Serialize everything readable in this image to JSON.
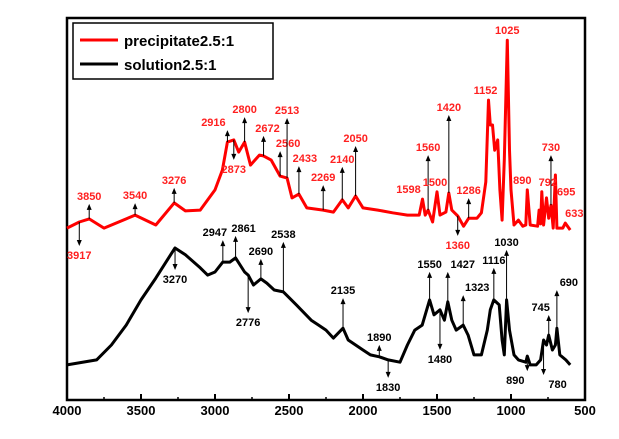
{
  "chart_data": {
    "type": "line",
    "title": "",
    "xlabel": "",
    "ylabel": "",
    "xlim": [
      4000,
      500
    ],
    "ylim": [
      0,
      100
    ],
    "x_reversed": true,
    "y_ticks_shown": false,
    "grid": false,
    "legend_position": "top-left",
    "x_ticks": [
      4000,
      3500,
      3000,
      2500,
      2000,
      1500,
      1000,
      500
    ],
    "x_tick_labels": [
      "4000",
      "3500",
      "3000",
      "2500",
      "2000",
      "1500",
      "1000",
      "500"
    ],
    "series": [
      {
        "name": "precipitate2.5:1",
        "color": "#ff0000",
        "x": [
          4000,
          3917,
          3850,
          3750,
          3540,
          3400,
          3276,
          3200,
          3100,
          3000,
          2950,
          2916,
          2873,
          2840,
          2800,
          2760,
          2700,
          2672,
          2620,
          2560,
          2513,
          2480,
          2433,
          2380,
          2269,
          2200,
          2140,
          2100,
          2050,
          2000,
          1900,
          1800,
          1700,
          1620,
          1598,
          1580,
          1560,
          1530,
          1500,
          1480,
          1440,
          1420,
          1400,
          1360,
          1320,
          1286,
          1230,
          1200,
          1170,
          1152,
          1140,
          1125,
          1110,
          1090,
          1075,
          1060,
          1045,
          1025,
          1010,
          1000,
          980,
          950,
          920,
          900,
          890,
          870,
          820,
          810,
          800,
          792,
          780,
          760,
          745,
          730,
          715,
          700,
          690,
          650,
          633,
          600
        ],
        "y": [
          45.0,
          46.6,
          47.4,
          45.0,
          48.4,
          45.8,
          51.6,
          49.5,
          49.7,
          55.0,
          60.2,
          67.5,
          68.1,
          64.9,
          67.5,
          61.5,
          64.1,
          63.9,
          62.8,
          58.6,
          58.1,
          52.9,
          53.9,
          50.3,
          49.7,
          49.2,
          52.4,
          50.3,
          53.4,
          50.3,
          49.7,
          49.0,
          48.4,
          48.4,
          52.6,
          48.4,
          49.7,
          46.6,
          54.5,
          48.4,
          49.2,
          54.2,
          49.7,
          48.2,
          45.5,
          47.6,
          47.6,
          49.0,
          57.1,
          78.5,
          72.0,
          72.0,
          65.4,
          68.1,
          55.0,
          47.1,
          62.8,
          94.2,
          65.4,
          55.0,
          45.8,
          47.1,
          45.5,
          45.8,
          55.0,
          45.8,
          45.5,
          49.7,
          46.1,
          54.5,
          45.8,
          52.9,
          47.6,
          51.0,
          45.0,
          58.9,
          45.0,
          45.0,
          46.3,
          44.5
        ],
        "annotations": [
          {
            "label": "3917",
            "at": 3917,
            "arrow": "down"
          },
          {
            "label": "3850",
            "at": 3850,
            "arrow": "up"
          },
          {
            "label": "3540",
            "at": 3540,
            "arrow": "up"
          },
          {
            "label": "3276",
            "at": 3276,
            "arrow": "up"
          },
          {
            "label": "2916",
            "at": 2916,
            "arrow": "up"
          },
          {
            "label": "2873",
            "at": 2873,
            "arrow": "down"
          },
          {
            "label": "2800",
            "at": 2800,
            "arrow": "up"
          },
          {
            "label": "2672",
            "at": 2672,
            "arrow": "up"
          },
          {
            "label": "2560",
            "at": 2560,
            "arrow": "up"
          },
          {
            "label": "2513",
            "at": 2513,
            "arrow": "up"
          },
          {
            "label": "2433",
            "at": 2433,
            "arrow": "up"
          },
          {
            "label": "2269",
            "at": 2269,
            "arrow": "up"
          },
          {
            "label": "2140",
            "at": 2140,
            "arrow": "up"
          },
          {
            "label": "2050",
            "at": 2050,
            "arrow": "up"
          },
          {
            "label": "1598",
            "at": 1598,
            "arrow": "none"
          },
          {
            "label": "1560",
            "at": 1560,
            "arrow": "up"
          },
          {
            "label": "1500",
            "at": 1500,
            "arrow": "none"
          },
          {
            "label": "1420",
            "at": 1420,
            "arrow": "up"
          },
          {
            "label": "1360",
            "at": 1360,
            "arrow": "down"
          },
          {
            "label": "1286",
            "at": 1286,
            "arrow": "up"
          },
          {
            "label": "1152",
            "at": 1152,
            "arrow": "none"
          },
          {
            "label": "1025",
            "at": 1025,
            "arrow": "none"
          },
          {
            "label": "890",
            "at": 890,
            "arrow": "none"
          },
          {
            "label": "792",
            "at": 792,
            "arrow": "none"
          },
          {
            "label": "730",
            "at": 730,
            "arrow": "up"
          },
          {
            "label": "695",
            "at": 695,
            "arrow": "none"
          },
          {
            "label": "633",
            "at": 633,
            "arrow": "none"
          }
        ]
      },
      {
        "name": "solution2.5:1",
        "color": "#000000",
        "x": [
          4000,
          3800,
          3700,
          3600,
          3500,
          3400,
          3300,
          3270,
          3200,
          3100,
          3050,
          3000,
          2947,
          2900,
          2861,
          2800,
          2776,
          2740,
          2690,
          2650,
          2600,
          2538,
          2450,
          2350,
          2300,
          2250,
          2200,
          2135,
          2100,
          2000,
          1950,
          1890,
          1830,
          1750,
          1700,
          1650,
          1600,
          1550,
          1520,
          1480,
          1450,
          1427,
          1400,
          1370,
          1323,
          1290,
          1250,
          1200,
          1160,
          1140,
          1116,
          1080,
          1060,
          1045,
          1030,
          1010,
          980,
          950,
          900,
          890,
          870,
          830,
          800,
          780,
          760,
          745,
          720,
          700,
          690,
          670,
          630,
          600
        ],
        "y": [
          9.2,
          10.5,
          14.4,
          19.6,
          26.2,
          31.9,
          38.0,
          39.8,
          38.0,
          34.6,
          32.7,
          33.5,
          36.1,
          36.1,
          37.2,
          33.5,
          32.7,
          30.1,
          31.7,
          30.6,
          28.8,
          28.3,
          24.9,
          20.9,
          19.6,
          18.3,
          16.2,
          18.8,
          15.7,
          13.1,
          11.8,
          11.3,
          10.5,
          9.9,
          14.4,
          18.3,
          19.6,
          26.2,
          22.3,
          23.6,
          20.9,
          25.7,
          20.9,
          18.3,
          19.6,
          17.0,
          11.8,
          11.8,
          18.3,
          23.6,
          26.2,
          24.9,
          15.7,
          11.8,
          26.2,
          18.3,
          11.8,
          10.5,
          9.9,
          11.5,
          9.2,
          9.2,
          10.5,
          15.7,
          14.4,
          17.0,
          13.1,
          14.4,
          18.8,
          11.8,
          10.5,
          9.2
        ],
        "annotations": [
          {
            "label": "3270",
            "at": 3270,
            "arrow": "down"
          },
          {
            "label": "2947",
            "at": 2947,
            "arrow": "up"
          },
          {
            "label": "2861",
            "at": 2861,
            "arrow": "up"
          },
          {
            "label": "2776",
            "at": 2776,
            "arrow": "down"
          },
          {
            "label": "2690",
            "at": 2690,
            "arrow": "up"
          },
          {
            "label": "2538",
            "at": 2538,
            "arrow": "up"
          },
          {
            "label": "2135",
            "at": 2135,
            "arrow": "up"
          },
          {
            "label": "1890",
            "at": 1890,
            "arrow": "up"
          },
          {
            "label": "1830",
            "at": 1830,
            "arrow": "down"
          },
          {
            "label": "1550",
            "at": 1550,
            "arrow": "up"
          },
          {
            "label": "1480",
            "at": 1480,
            "arrow": "down"
          },
          {
            "label": "1427",
            "at": 1427,
            "arrow": "up"
          },
          {
            "label": "1323",
            "at": 1323,
            "arrow": "up"
          },
          {
            "label": "1116",
            "at": 1116,
            "arrow": "up"
          },
          {
            "label": "1030",
            "at": 1030,
            "arrow": "up"
          },
          {
            "label": "890",
            "at": 890,
            "arrow": "down"
          },
          {
            "label": "780",
            "at": 780,
            "arrow": "down"
          },
          {
            "label": "745",
            "at": 745,
            "arrow": "up"
          },
          {
            "label": "690",
            "at": 690,
            "arrow": "up"
          }
        ]
      }
    ]
  }
}
